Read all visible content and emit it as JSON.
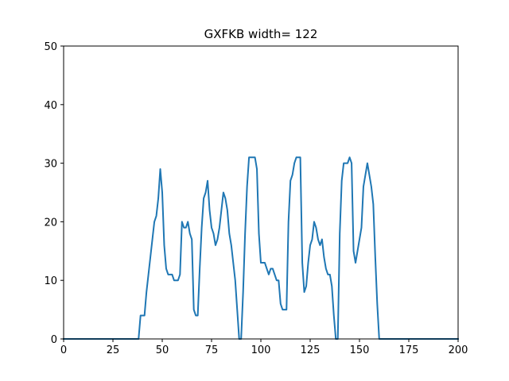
{
  "chart_data": {
    "type": "line",
    "title": "GXFKB width= 122",
    "xlabel": "",
    "ylabel": "",
    "xlim": [
      0,
      200
    ],
    "ylim": [
      0,
      50
    ],
    "xticks": [
      0,
      25,
      50,
      75,
      100,
      125,
      150,
      175,
      200
    ],
    "yticks": [
      0,
      10,
      20,
      30,
      40,
      50
    ],
    "grid": false,
    "series": [
      {
        "color": "#1f77b4",
        "x": [
          0,
          37,
          38,
          39,
          40,
          41,
          42,
          43,
          44,
          45,
          46,
          47,
          48,
          49,
          50,
          51,
          52,
          53,
          54,
          55,
          56,
          57,
          58,
          59,
          60,
          61,
          62,
          63,
          64,
          65,
          66,
          67,
          68,
          69,
          70,
          71,
          72,
          73,
          74,
          75,
          76,
          77,
          78,
          79,
          80,
          81,
          82,
          83,
          84,
          85,
          86,
          87,
          88,
          89,
          90,
          91,
          92,
          93,
          94,
          95,
          96,
          97,
          98,
          99,
          100,
          101,
          102,
          103,
          104,
          105,
          106,
          107,
          108,
          109,
          110,
          111,
          112,
          113,
          114,
          115,
          116,
          117,
          118,
          119,
          120,
          121,
          122,
          123,
          124,
          125,
          126,
          127,
          128,
          129,
          130,
          131,
          132,
          133,
          134,
          135,
          136,
          137,
          138,
          139,
          140,
          141,
          142,
          143,
          144,
          145,
          146,
          147,
          148,
          149,
          150,
          151,
          152,
          153,
          154,
          155,
          156,
          157,
          158,
          159,
          160,
          161,
          200
        ],
        "y": [
          0,
          0,
          0,
          4,
          4,
          4,
          8,
          11,
          14,
          17,
          20,
          21,
          24,
          29,
          25,
          16,
          12,
          11,
          11,
          11,
          10,
          10,
          10,
          11,
          20,
          19,
          19,
          20,
          18,
          17,
          5,
          4,
          4,
          12,
          19,
          24,
          25,
          27,
          22,
          19,
          18,
          16,
          17,
          19,
          22,
          25,
          24,
          22,
          18,
          16,
          13,
          10,
          5,
          0,
          0,
          8,
          18,
          26,
          31,
          31,
          31,
          31,
          29,
          18,
          13,
          13,
          13,
          12,
          11,
          12,
          12,
          11,
          10,
          10,
          6,
          5,
          5,
          5,
          20,
          27,
          28,
          30,
          31,
          31,
          31,
          13,
          8,
          9,
          13,
          16,
          17,
          20,
          19,
          17,
          16,
          17,
          14,
          12,
          11,
          11,
          9,
          4,
          0,
          0,
          18,
          27,
          30,
          30,
          30,
          31,
          30,
          15,
          13,
          15,
          17,
          19,
          26,
          28,
          30,
          28,
          26,
          23,
          14,
          6,
          0,
          0,
          0
        ]
      }
    ]
  }
}
